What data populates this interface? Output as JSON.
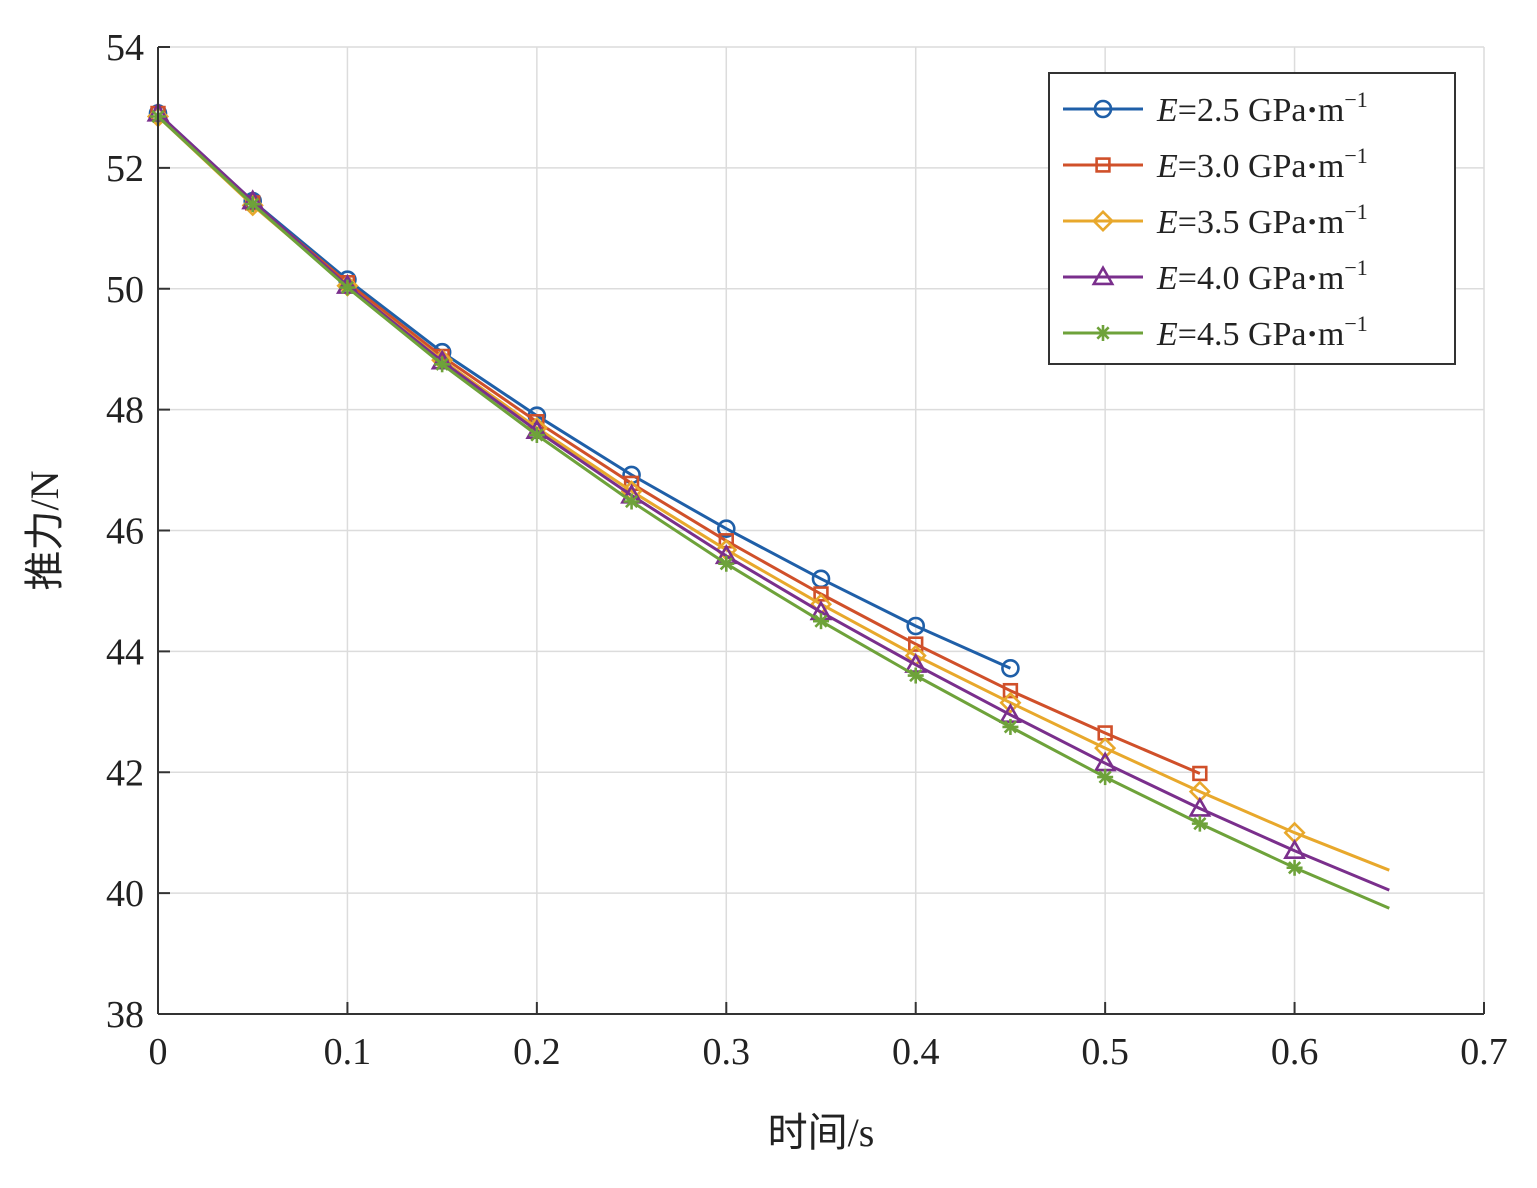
{
  "chart_data": {
    "type": "line",
    "xlabel": "时间/s",
    "ylabel": "推力/N",
    "xlim": [
      0,
      0.7
    ],
    "ylim": [
      38,
      54
    ],
    "xticks": [
      0,
      0.1,
      0.2,
      0.3,
      0.4,
      0.5,
      0.6,
      0.7
    ],
    "xtick_labels": [
      "0",
      "0.1",
      "0.2",
      "0.3",
      "0.4",
      "0.5",
      "0.6",
      "0.7"
    ],
    "yticks": [
      38,
      40,
      42,
      44,
      46,
      48,
      50,
      52,
      54
    ],
    "ytick_labels": [
      "38",
      "40",
      "42",
      "44",
      "46",
      "48",
      "50",
      "52",
      "54"
    ],
    "grid": true,
    "legend_position": "top-right",
    "series": [
      {
        "name": "E=2.5 GPa·m⁻¹",
        "legend_prefix": "E",
        "legend_value": "=2.5 GPa",
        "legend_unit": "m",
        "legend_exp": "−1",
        "color": "#1f5fa8",
        "marker": "circle",
        "x": [
          0,
          0.05,
          0.1,
          0.15,
          0.2,
          0.25,
          0.3,
          0.35,
          0.4,
          0.45
        ],
        "y": [
          52.9,
          51.45,
          50.15,
          48.95,
          47.9,
          46.92,
          46.03,
          45.2,
          44.42,
          43.72
        ]
      },
      {
        "name": "E=3.0 GPa·m⁻¹",
        "legend_prefix": "E",
        "legend_value": "=3.0 GPa",
        "legend_unit": "m",
        "legend_exp": "−1",
        "color": "#d0502a",
        "marker": "square",
        "x": [
          0,
          0.05,
          0.1,
          0.15,
          0.2,
          0.25,
          0.3,
          0.35,
          0.4,
          0.45,
          0.5,
          0.55
        ],
        "y": [
          52.9,
          51.42,
          50.1,
          48.88,
          47.8,
          46.78,
          45.83,
          44.95,
          44.12,
          43.35,
          42.65,
          41.98
        ]
      },
      {
        "name": "E=3.5 GPa·m⁻¹",
        "legend_prefix": "E",
        "legend_value": "=3.5 GPa",
        "legend_unit": "m",
        "legend_exp": "−1",
        "color": "#e8a82c",
        "marker": "diamond",
        "x": [
          0,
          0.05,
          0.1,
          0.15,
          0.2,
          0.25,
          0.3,
          0.35,
          0.4,
          0.45,
          0.5,
          0.55,
          0.6,
          0.65
        ],
        "y": [
          52.85,
          51.38,
          50.05,
          48.82,
          47.7,
          46.65,
          45.68,
          44.78,
          43.93,
          43.15,
          42.4,
          41.68,
          41.0,
          40.38
        ]
      },
      {
        "name": "E=4.0 GPa·m⁻¹",
        "legend_prefix": "E",
        "legend_value": "=4.0 GPa",
        "legend_unit": "m",
        "legend_exp": "−1",
        "color": "#7a2f8c",
        "marker": "triangle",
        "x": [
          0,
          0.05,
          0.1,
          0.15,
          0.2,
          0.25,
          0.3,
          0.35,
          0.4,
          0.45,
          0.5,
          0.55,
          0.6,
          0.65
        ],
        "y": [
          52.9,
          51.45,
          50.05,
          48.8,
          47.65,
          46.58,
          45.58,
          44.65,
          43.78,
          42.95,
          42.15,
          41.4,
          40.7,
          40.05
        ]
      },
      {
        "name": "E=4.5 GPa·m⁻¹",
        "legend_prefix": "E",
        "legend_value": "=4.5 GPa",
        "legend_unit": "m",
        "legend_exp": "−1",
        "color": "#6ea23a",
        "marker": "star",
        "x": [
          0,
          0.05,
          0.1,
          0.15,
          0.2,
          0.25,
          0.3,
          0.35,
          0.4,
          0.45,
          0.5,
          0.55,
          0.6,
          0.65
        ],
        "y": [
          52.85,
          51.4,
          50.02,
          48.75,
          47.58,
          46.48,
          45.45,
          44.5,
          43.6,
          42.75,
          41.92,
          41.15,
          40.42,
          39.75
        ]
      }
    ]
  }
}
